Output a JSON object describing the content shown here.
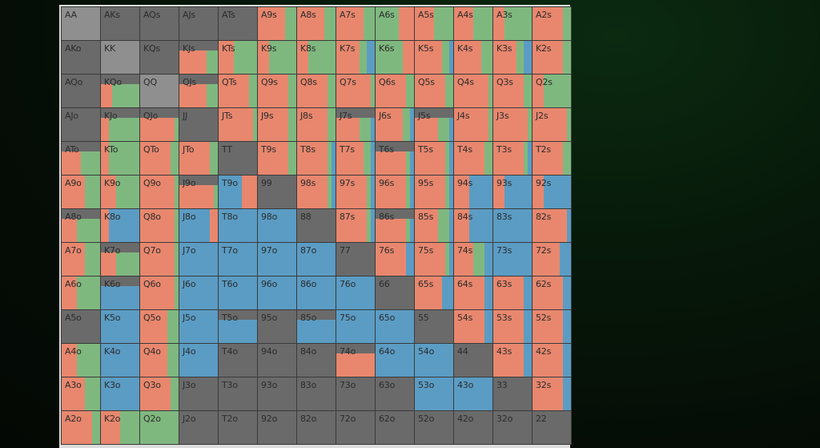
{
  "colors": {
    "orange": "#e8876e",
    "green": "#7fb87f",
    "blue": "#5b9cc4",
    "gray_dark": "#555555",
    "gray_mid": "#6a6a6a",
    "gray_light": "#8f8f8f"
  },
  "rows": [
    [
      "AA",
      "AKs",
      "AQs",
      "AJs",
      "ATs",
      "A9s",
      "A8s",
      "A7s",
      "A6s",
      "A5s",
      "A4s",
      "A3s",
      "A2s"
    ],
    [
      "AKo",
      "KK",
      "KQs",
      "KJs",
      "KTs",
      "K9s",
      "K8s",
      "K7s",
      "K6s",
      "K5s",
      "K4s",
      "K3s",
      "K2s"
    ],
    [
      "AQo",
      "KQo",
      "QQ",
      "QJs",
      "QTs",
      "Q9s",
      "Q8s",
      "Q7s",
      "Q6s",
      "Q5s",
      "Q4s",
      "Q3s",
      "Q2s"
    ],
    [
      "AJo",
      "KJo",
      "QJo",
      "JJ",
      "JTs",
      "J9s",
      "J8s",
      "J7s",
      "J6s",
      "J5s",
      "J4s",
      "J3s",
      "J2s"
    ],
    [
      "ATo",
      "KTo",
      "QTo",
      "JTo",
      "TT",
      "T9s",
      "T8s",
      "T7s",
      "T6s",
      "T5s",
      "T4s",
      "T3s",
      "T2s"
    ],
    [
      "A9o",
      "K9o",
      "Q9o",
      "J9o",
      "T9o",
      "99",
      "98s",
      "97s",
      "96s",
      "95s",
      "94s",
      "93s",
      "92s"
    ],
    [
      "A8o",
      "K8o",
      "Q8o",
      "J8o",
      "T8o",
      "98o",
      "88",
      "87s",
      "86s",
      "85s",
      "84s",
      "83s",
      "82s"
    ],
    [
      "A7o",
      "K7o",
      "Q7o",
      "J7o",
      "T7o",
      "97o",
      "87o",
      "77",
      "76s",
      "75s",
      "74s",
      "73s",
      "72s"
    ],
    [
      "A6o",
      "K6o",
      "Q6o",
      "J6o",
      "T6o",
      "96o",
      "86o",
      "76o",
      "66",
      "65s",
      "64s",
      "63s",
      "62s"
    ],
    [
      "A5o",
      "K5o",
      "Q5o",
      "J5o",
      "T5o",
      "95o",
      "85o",
      "75o",
      "65o",
      "55",
      "54s",
      "53s",
      "52s"
    ],
    [
      "A4o",
      "K4o",
      "Q4o",
      "J4o",
      "T4o",
      "94o",
      "84o",
      "74o",
      "64o",
      "54o",
      "44",
      "43s",
      "42s"
    ],
    [
      "A3o",
      "K3o",
      "Q3o",
      "J3o",
      "T3o",
      "93o",
      "83o",
      "73o",
      "63o",
      "53o",
      "43o",
      "33",
      "32s"
    ],
    [
      "A2o",
      "K2o",
      "Q2o",
      "J2o",
      "T2o",
      "92o",
      "82o",
      "72o",
      "62o",
      "52o",
      "42o",
      "32o",
      "22"
    ]
  ],
  "cells": [
    [
      "L",
      "D",
      "D",
      "D",
      "D",
      "o7g3",
      "o7g3",
      "o7g3",
      "g6o4",
      "o5g5",
      "o5g5",
      "o3g7",
      "o8g2"
    ],
    [
      "D",
      "L",
      "D",
      "D|o7g3",
      "o4g6",
      "o3g7",
      "o3g7",
      "o6g2b2",
      "g7o3",
      "o7g2b1",
      "o7g3",
      "o6g2b2",
      "o8g2"
    ],
    [
      "D",
      "D|o3g7",
      "L",
      "D|o7g3",
      "o8g2",
      "o8g2",
      "o8g2",
      "o9g1",
      "o8g2",
      "o8g2",
      "o9g1",
      "o8g2",
      "o3g7"
    ],
    [
      "D",
      "D|o2g8",
      "D|o9g1",
      "M",
      "o9g1",
      "o8g2",
      "o8g2",
      "D|o6g3b1",
      "o7g2b1",
      "D|o6g3b1",
      "o9g1",
      "o9g1",
      "o9g1"
    ],
    [
      "D|o5g5",
      "o2g8",
      "o8g2",
      "o8g2",
      "D",
      "o8g2",
      "o8g1b1",
      "o7g2b1",
      "D|o8g1b1",
      "o8g1b1",
      "o8g2",
      "o8g1b1",
      "o8g2"
    ],
    [
      "o6g4",
      "o4g6",
      "o9g1",
      "D|o9g1",
      "b6o4",
      "M",
      "o8g1b1",
      "o8g1b1",
      "o8g1b1",
      "o8g1b1",
      "o4b6",
      "o3b7",
      "o3b7"
    ],
    [
      "D|o4g6",
      "o2b8",
      "o9g1",
      "b8o2",
      "b9",
      "b",
      "M",
      "o8g1b1",
      "D|o8g1b1",
      "o6g3b1",
      "o4b6",
      "b",
      "o9b1"
    ],
    [
      "o6g4",
      "D|o4g6",
      "o9g1",
      "b9",
      "b9",
      "b",
      "b",
      "M",
      "o8b2",
      "o8g1b1",
      "o5g3b2",
      "b",
      "o7b3"
    ],
    [
      "o4g6",
      "D|b",
      "o9g1",
      "b",
      "b",
      "b",
      "b",
      "b",
      "M",
      "o7b3",
      "o8b2",
      "o8b2",
      "o8b2"
    ],
    [
      "M",
      "b",
      "o7g3",
      "b",
      "D|b",
      "D",
      "D|b",
      "b",
      "b",
      "M",
      "o8b2",
      "o8b2",
      "o8b2"
    ],
    [
      "o4g6",
      "b9",
      "o7g3",
      "b",
      "D",
      "D",
      "D",
      "D|o9",
      "b",
      "b",
      "M",
      "o8b2",
      "o8b2"
    ],
    [
      "o6g4",
      "b",
      "o8g2",
      "D",
      "D",
      "D",
      "D",
      "D",
      "D",
      "b",
      "b",
      "M",
      "o8b2"
    ],
    [
      "o8g2",
      "o5g5",
      "g",
      "D",
      "D",
      "D",
      "D",
      "D",
      "D",
      "D",
      "D",
      "D",
      "M"
    ]
  ]
}
